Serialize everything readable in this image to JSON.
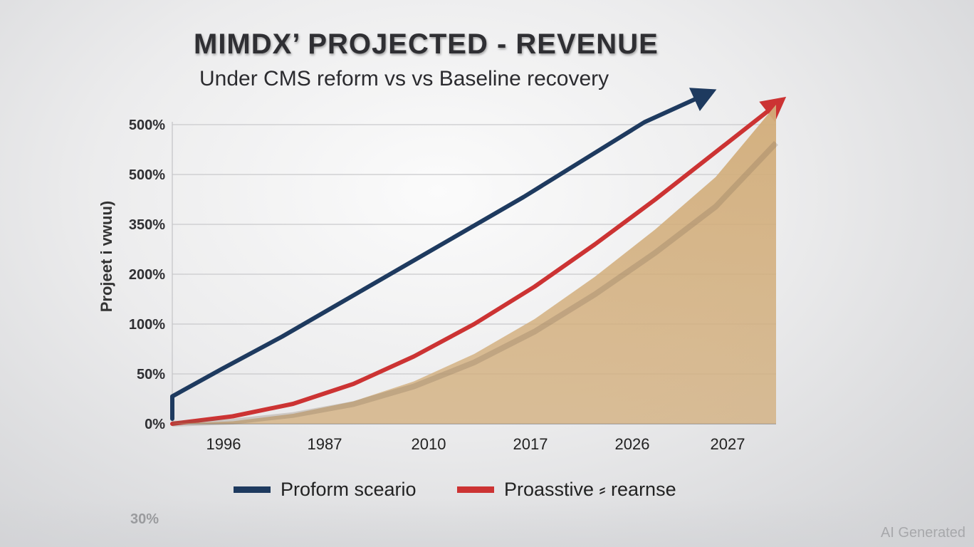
{
  "title": "MIMDX’ PROJECTED - REVENUE",
  "subtitle": "Under CMS reform vs vs Baseline recovery",
  "watermark": "AI Generated",
  "reflection_tick": "30%",
  "colors": {
    "series1": "#1e3a5f",
    "series2": "#cc3333",
    "area": "#d2ad7a",
    "grid": "#c9c9cc",
    "text": "#2f2f33"
  },
  "chart_data": {
    "type": "line",
    "title": "MIMDX’ PROJECTED - REVENUE",
    "subtitle": "Under CMS reform vs vs Baseline recovery",
    "ylabel": "Projeet i vwuu)",
    "xlabel": "",
    "x_ticks": [
      "1996",
      "1987",
      "2010",
      "2017",
      "2026",
      "2027"
    ],
    "y_ticks": [
      "0%",
      "50%",
      "100%",
      "200%",
      "350%",
      "500%",
      "500%"
    ],
    "grid": true,
    "legend_position": "bottom",
    "series": [
      {
        "name": "Proform sceario",
        "style": "line-with-arrow",
        "color": "#1e3a5f",
        "x": [
          0,
          0.5,
          1,
          1.5,
          2,
          2.5,
          3,
          3.5,
          4,
          4.5,
          5
        ],
        "y_tick_index": [
          0.1,
          0.55,
          1.1,
          1.75,
          2.45,
          3.15,
          3.85,
          4.55,
          5.3,
          6.05,
          6.6
        ]
      },
      {
        "name": "Proasstive ⸗ rearnse",
        "style": "line-with-arrow",
        "color": "#cc3333",
        "x": [
          0,
          0.5,
          1,
          1.5,
          2,
          2.5,
          3,
          3.5,
          4,
          4.5,
          5
        ],
        "y_tick_index": [
          0.0,
          0.15,
          0.4,
          0.8,
          1.35,
          2.0,
          2.75,
          3.6,
          4.5,
          5.45,
          6.4
        ]
      },
      {
        "name": "",
        "style": "area",
        "color": "#d2ad7a",
        "x": [
          0,
          0.5,
          1,
          1.5,
          2,
          2.5,
          3,
          3.5,
          4,
          4.5,
          5
        ],
        "y_tick_index": [
          0.0,
          0.05,
          0.2,
          0.45,
          0.85,
          1.4,
          2.1,
          2.95,
          3.9,
          4.95,
          6.4
        ]
      }
    ]
  },
  "legend": [
    {
      "label": "Proform sceario",
      "color": "#1e3a5f"
    },
    {
      "label": "Proasstive ⸗ rearnse",
      "color": "#cc3333"
    }
  ]
}
